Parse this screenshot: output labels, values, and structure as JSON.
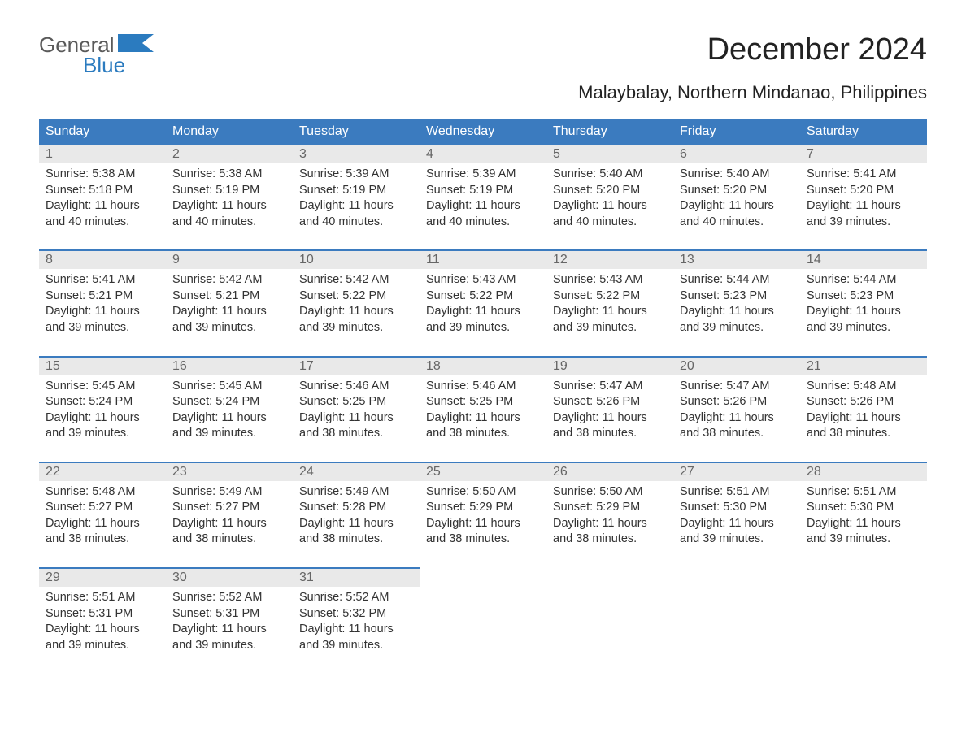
{
  "logo": {
    "word1": "General",
    "word2": "Blue"
  },
  "title": "December 2024",
  "location": "Malaybalay, Northern Mindanao, Philippines",
  "columns": [
    "Sunday",
    "Monday",
    "Tuesday",
    "Wednesday",
    "Thursday",
    "Friday",
    "Saturday"
  ],
  "colors": {
    "header_bg": "#3b7bbf",
    "header_text": "#ffffff",
    "day_row_bg": "#e9e9e9",
    "day_row_border": "#3b7bbf",
    "body_text": "#333333",
    "logo_gray": "#5a5a5a",
    "logo_blue": "#2b7bbf"
  },
  "weeks": [
    [
      {
        "n": "1",
        "sr": "Sunrise: 5:38 AM",
        "ss": "Sunset: 5:18 PM",
        "d1": "Daylight: 11 hours",
        "d2": "and 40 minutes."
      },
      {
        "n": "2",
        "sr": "Sunrise: 5:38 AM",
        "ss": "Sunset: 5:19 PM",
        "d1": "Daylight: 11 hours",
        "d2": "and 40 minutes."
      },
      {
        "n": "3",
        "sr": "Sunrise: 5:39 AM",
        "ss": "Sunset: 5:19 PM",
        "d1": "Daylight: 11 hours",
        "d2": "and 40 minutes."
      },
      {
        "n": "4",
        "sr": "Sunrise: 5:39 AM",
        "ss": "Sunset: 5:19 PM",
        "d1": "Daylight: 11 hours",
        "d2": "and 40 minutes."
      },
      {
        "n": "5",
        "sr": "Sunrise: 5:40 AM",
        "ss": "Sunset: 5:20 PM",
        "d1": "Daylight: 11 hours",
        "d2": "and 40 minutes."
      },
      {
        "n": "6",
        "sr": "Sunrise: 5:40 AM",
        "ss": "Sunset: 5:20 PM",
        "d1": "Daylight: 11 hours",
        "d2": "and 40 minutes."
      },
      {
        "n": "7",
        "sr": "Sunrise: 5:41 AM",
        "ss": "Sunset: 5:20 PM",
        "d1": "Daylight: 11 hours",
        "d2": "and 39 minutes."
      }
    ],
    [
      {
        "n": "8",
        "sr": "Sunrise: 5:41 AM",
        "ss": "Sunset: 5:21 PM",
        "d1": "Daylight: 11 hours",
        "d2": "and 39 minutes."
      },
      {
        "n": "9",
        "sr": "Sunrise: 5:42 AM",
        "ss": "Sunset: 5:21 PM",
        "d1": "Daylight: 11 hours",
        "d2": "and 39 minutes."
      },
      {
        "n": "10",
        "sr": "Sunrise: 5:42 AM",
        "ss": "Sunset: 5:22 PM",
        "d1": "Daylight: 11 hours",
        "d2": "and 39 minutes."
      },
      {
        "n": "11",
        "sr": "Sunrise: 5:43 AM",
        "ss": "Sunset: 5:22 PM",
        "d1": "Daylight: 11 hours",
        "d2": "and 39 minutes."
      },
      {
        "n": "12",
        "sr": "Sunrise: 5:43 AM",
        "ss": "Sunset: 5:22 PM",
        "d1": "Daylight: 11 hours",
        "d2": "and 39 minutes."
      },
      {
        "n": "13",
        "sr": "Sunrise: 5:44 AM",
        "ss": "Sunset: 5:23 PM",
        "d1": "Daylight: 11 hours",
        "d2": "and 39 minutes."
      },
      {
        "n": "14",
        "sr": "Sunrise: 5:44 AM",
        "ss": "Sunset: 5:23 PM",
        "d1": "Daylight: 11 hours",
        "d2": "and 39 minutes."
      }
    ],
    [
      {
        "n": "15",
        "sr": "Sunrise: 5:45 AM",
        "ss": "Sunset: 5:24 PM",
        "d1": "Daylight: 11 hours",
        "d2": "and 39 minutes."
      },
      {
        "n": "16",
        "sr": "Sunrise: 5:45 AM",
        "ss": "Sunset: 5:24 PM",
        "d1": "Daylight: 11 hours",
        "d2": "and 39 minutes."
      },
      {
        "n": "17",
        "sr": "Sunrise: 5:46 AM",
        "ss": "Sunset: 5:25 PM",
        "d1": "Daylight: 11 hours",
        "d2": "and 38 minutes."
      },
      {
        "n": "18",
        "sr": "Sunrise: 5:46 AM",
        "ss": "Sunset: 5:25 PM",
        "d1": "Daylight: 11 hours",
        "d2": "and 38 minutes."
      },
      {
        "n": "19",
        "sr": "Sunrise: 5:47 AM",
        "ss": "Sunset: 5:26 PM",
        "d1": "Daylight: 11 hours",
        "d2": "and 38 minutes."
      },
      {
        "n": "20",
        "sr": "Sunrise: 5:47 AM",
        "ss": "Sunset: 5:26 PM",
        "d1": "Daylight: 11 hours",
        "d2": "and 38 minutes."
      },
      {
        "n": "21",
        "sr": "Sunrise: 5:48 AM",
        "ss": "Sunset: 5:26 PM",
        "d1": "Daylight: 11 hours",
        "d2": "and 38 minutes."
      }
    ],
    [
      {
        "n": "22",
        "sr": "Sunrise: 5:48 AM",
        "ss": "Sunset: 5:27 PM",
        "d1": "Daylight: 11 hours",
        "d2": "and 38 minutes."
      },
      {
        "n": "23",
        "sr": "Sunrise: 5:49 AM",
        "ss": "Sunset: 5:27 PM",
        "d1": "Daylight: 11 hours",
        "d2": "and 38 minutes."
      },
      {
        "n": "24",
        "sr": "Sunrise: 5:49 AM",
        "ss": "Sunset: 5:28 PM",
        "d1": "Daylight: 11 hours",
        "d2": "and 38 minutes."
      },
      {
        "n": "25",
        "sr": "Sunrise: 5:50 AM",
        "ss": "Sunset: 5:29 PM",
        "d1": "Daylight: 11 hours",
        "d2": "and 38 minutes."
      },
      {
        "n": "26",
        "sr": "Sunrise: 5:50 AM",
        "ss": "Sunset: 5:29 PM",
        "d1": "Daylight: 11 hours",
        "d2": "and 38 minutes."
      },
      {
        "n": "27",
        "sr": "Sunrise: 5:51 AM",
        "ss": "Sunset: 5:30 PM",
        "d1": "Daylight: 11 hours",
        "d2": "and 39 minutes."
      },
      {
        "n": "28",
        "sr": "Sunrise: 5:51 AM",
        "ss": "Sunset: 5:30 PM",
        "d1": "Daylight: 11 hours",
        "d2": "and 39 minutes."
      }
    ],
    [
      {
        "n": "29",
        "sr": "Sunrise: 5:51 AM",
        "ss": "Sunset: 5:31 PM",
        "d1": "Daylight: 11 hours",
        "d2": "and 39 minutes."
      },
      {
        "n": "30",
        "sr": "Sunrise: 5:52 AM",
        "ss": "Sunset: 5:31 PM",
        "d1": "Daylight: 11 hours",
        "d2": "and 39 minutes."
      },
      {
        "n": "31",
        "sr": "Sunrise: 5:52 AM",
        "ss": "Sunset: 5:32 PM",
        "d1": "Daylight: 11 hours",
        "d2": "and 39 minutes."
      },
      null,
      null,
      null,
      null
    ]
  ]
}
